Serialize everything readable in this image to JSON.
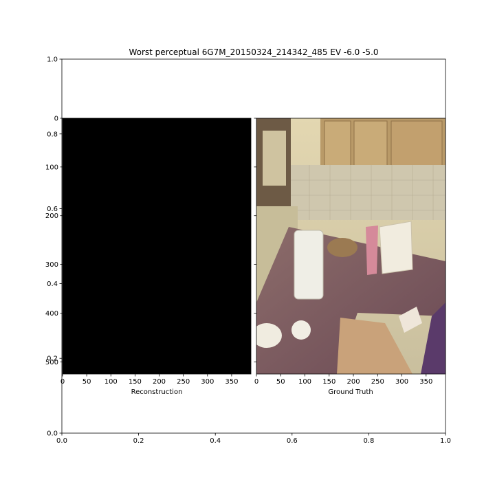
{
  "figure": {
    "title": "Worst perceptual 6G7M_20150324_214342_485 EV -6.0 -5.0"
  },
  "colors": {
    "reconstruction_fill": "#000000",
    "axes_edge": "#000000",
    "background": "#ffffff",
    "photo_wall": "#d8c9a6",
    "photo_cabinet": "#b99a68",
    "photo_counter": "#7a5a5e",
    "photo_backsplash": "#cfc7ae"
  },
  "chart_data": [
    {
      "type": "frame",
      "role": "outer-axes",
      "xlim": [
        0.0,
        1.0
      ],
      "ylim": [
        0.0,
        1.0
      ],
      "xticks": [
        0.0,
        0.2,
        0.4,
        0.6,
        0.8,
        1.0
      ],
      "yticks": [
        0.0,
        0.2,
        0.4,
        0.6,
        0.8,
        1.0
      ],
      "xtick_labels": [
        "0.0",
        "0.2",
        "0.4",
        "0.6",
        "0.8",
        "1.0"
      ],
      "ytick_labels": [
        "0.0",
        "0.2",
        "0.4",
        "0.6",
        "0.8",
        "1.0"
      ],
      "grid": false
    },
    {
      "type": "image",
      "role": "reconstruction",
      "xlabel": "Reconstruction",
      "content": "almost entirely black image",
      "xlim": [
        0,
        390
      ],
      "ylim": [
        525,
        0
      ],
      "xticks": [
        0,
        50,
        100,
        150,
        200,
        250,
        300,
        350
      ],
      "yticks": [
        0,
        100,
        200,
        300,
        400,
        500
      ],
      "xtick_labels": [
        "0",
        "50",
        "100",
        "150",
        "200",
        "250",
        "300",
        "350"
      ],
      "ytick_labels": [
        "0",
        "100",
        "200",
        "300",
        "400",
        "500"
      ],
      "grid": false
    },
    {
      "type": "image",
      "role": "ground-truth",
      "xlabel": "Ground Truth",
      "content": "kitchen corner with wooden cabinets, granite countertop, water pitcher and bags",
      "xlim": [
        0,
        390
      ],
      "ylim": [
        525,
        0
      ],
      "xticks": [
        0,
        50,
        100,
        150,
        200,
        250,
        300,
        350
      ],
      "yticks": [
        0,
        100,
        200,
        300,
        400,
        500
      ],
      "xtick_labels": [
        "0",
        "50",
        "100",
        "150",
        "200",
        "250",
        "300",
        "350"
      ],
      "ytick_labels": [],
      "grid": false
    }
  ]
}
